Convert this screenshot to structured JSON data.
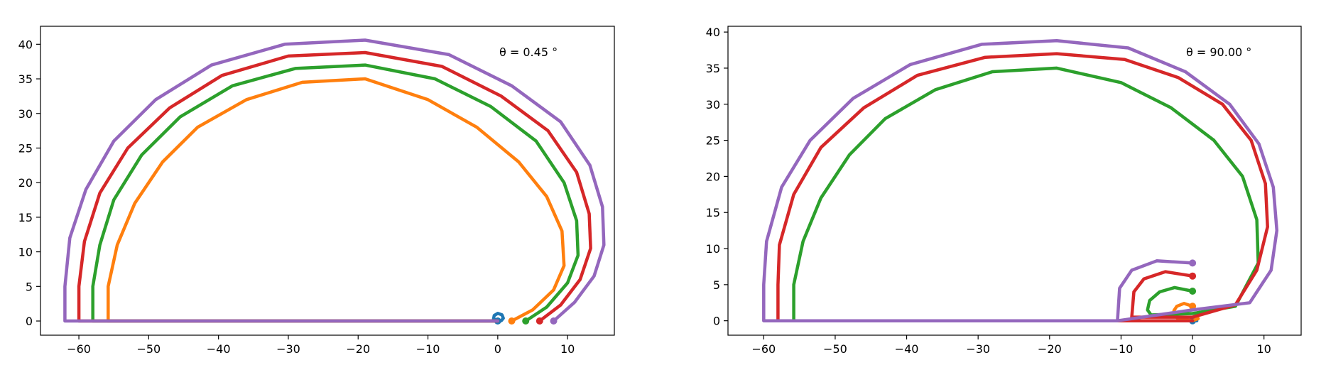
{
  "colors": {
    "blue": "#1f77b4",
    "orange": "#ff7f0e",
    "green": "#2ca02c",
    "red": "#d62728",
    "purple": "#9467bd",
    "axes": "#000000",
    "background": "#ffffff"
  },
  "chart_data": [
    {
      "type": "line",
      "title": "",
      "xlabel": "",
      "ylabel": "",
      "annotation": "θ = 0.45 °",
      "xlim": [
        -65.5,
        16.7
      ],
      "ylim": [
        -2.05,
        42.6
      ],
      "xticks": [
        -60,
        -50,
        -40,
        -30,
        -20,
        -10,
        0,
        10
      ],
      "yticks": [
        0,
        5,
        10,
        15,
        20,
        25,
        30,
        35,
        40
      ],
      "xtick_labels": [
        "−60",
        "−50",
        "−40",
        "−30",
        "−20",
        "−10",
        "0",
        "10"
      ],
      "ytick_labels": [
        "0",
        "5",
        "10",
        "15",
        "20",
        "25",
        "30",
        "35",
        "40"
      ],
      "grid": false,
      "series": [
        {
          "color": "#1f77b4",
          "x": [
            0,
            -0.6,
            -0.5,
            0,
            0.6,
            0.8,
            0.5,
            0
          ],
          "y": [
            0,
            0.3,
            0.8,
            1.1,
            0.9,
            0.4,
            0.05,
            0
          ],
          "end": [
            0,
            0
          ]
        },
        {
          "color": "#ff7f0e",
          "x": [
            2,
            5,
            8,
            9.5,
            9.2,
            7,
            3,
            -3,
            -10,
            -19,
            -28,
            -36,
            -43,
            -48,
            -52,
            -54.5,
            -55.8,
            -55.8,
            0
          ],
          "y": [
            0,
            1.6,
            4.5,
            8,
            13,
            18,
            23,
            28,
            32,
            35,
            34.5,
            32,
            28,
            23,
            17,
            11,
            5,
            0,
            0
          ],
          "end": [
            2,
            0
          ]
        },
        {
          "color": "#2ca02c",
          "x": [
            4,
            7,
            10,
            11.5,
            11.3,
            9.5,
            5.5,
            -1,
            -9,
            -19,
            -29,
            -38,
            -45.5,
            -51,
            -55,
            -57,
            -58,
            -58,
            0
          ],
          "y": [
            0,
            2,
            5.5,
            9.5,
            14.5,
            20,
            26,
            31,
            35,
            37,
            36.5,
            34,
            29.5,
            24,
            17.5,
            11,
            5,
            0,
            0
          ],
          "end": [
            4,
            0
          ]
        },
        {
          "color": "#d62728",
          "x": [
            6,
            9,
            11.8,
            13.3,
            13.1,
            11.3,
            7.2,
            0.5,
            -8,
            -19,
            -30,
            -39.5,
            -47,
            -53,
            -57,
            -59.2,
            -60,
            -60,
            0
          ],
          "y": [
            0,
            2.3,
            6,
            10.5,
            15.5,
            21.5,
            27.5,
            32.5,
            36.8,
            38.8,
            38.3,
            35.5,
            30.8,
            25,
            18.5,
            11.5,
            5,
            0,
            0
          ],
          "end": [
            6,
            0
          ]
        },
        {
          "color": "#9467bd",
          "x": [
            8,
            11,
            13.8,
            15.2,
            15,
            13.2,
            9,
            2,
            -7,
            -19,
            -30.5,
            -41,
            -49,
            -55,
            -59,
            -61.3,
            -62,
            -62,
            0
          ],
          "y": [
            0,
            2.7,
            6.5,
            11,
            16.5,
            22.5,
            28.8,
            34,
            38.5,
            40.6,
            40,
            37,
            32,
            26,
            19,
            12,
            5,
            0,
            0
          ],
          "end": [
            8,
            0
          ]
        }
      ]
    },
    {
      "type": "line",
      "title": "",
      "xlabel": "",
      "ylabel": "",
      "annotation": "θ = 90.00 °",
      "xlim": [
        -65,
        15.2
      ],
      "ylim": [
        -2,
        40.8
      ],
      "xticks": [
        -60,
        -50,
        -40,
        -30,
        -20,
        -10,
        0,
        10
      ],
      "yticks": [
        0,
        5,
        10,
        15,
        20,
        25,
        30,
        35,
        40
      ],
      "xtick_labels": [
        "−60",
        "−50",
        "−40",
        "−30",
        "−20",
        "−10",
        "0",
        "10"
      ],
      "ytick_labels": [
        "0",
        "5",
        "10",
        "15",
        "20",
        "25",
        "30",
        "35",
        "40"
      ],
      "grid": false,
      "series": [
        {
          "color": "#1f77b4",
          "x": [
            0,
            0.6
          ],
          "y": [
            0,
            0
          ],
          "end": [
            0,
            0
          ]
        },
        {
          "color": "#ff7f0e",
          "x": [
            0,
            -1.2,
            -2.2,
            -2.6,
            -2.5,
            -2,
            0,
            0.8,
            0
          ],
          "y": [
            2,
            2.4,
            2,
            1.4,
            0.7,
            0.3,
            0,
            0.3,
            0
          ],
          "end": [
            0,
            2
          ]
        },
        {
          "color": "#2ca02c",
          "x": [
            0,
            -2.5,
            -4.6,
            -6,
            -6.3,
            -5.8,
            0,
            6,
            9.2,
            9,
            7,
            3,
            -3,
            -10,
            -19,
            -28,
            -36,
            -43,
            -48,
            -52,
            -54.5,
            -55.8,
            -55.8,
            -10,
            0
          ],
          "y": [
            4.1,
            4.6,
            4,
            2.8,
            1.5,
            0.8,
            1,
            2,
            8,
            14,
            20,
            25,
            29.5,
            33,
            35,
            34.5,
            32,
            28,
            23,
            17,
            11,
            5,
            0,
            0,
            0
          ],
          "end": [
            0,
            4.1
          ]
        },
        {
          "color": "#d62728",
          "x": [
            0,
            -3.8,
            -6.8,
            -8.2,
            -8.5,
            0,
            6,
            9,
            10.5,
            10.2,
            8.2,
            4.2,
            -2,
            -9.5,
            -19,
            -29,
            -38.5,
            -46,
            -52,
            -55.8,
            -57.8,
            -58,
            -58,
            0
          ],
          "y": [
            6.2,
            6.8,
            5.8,
            4,
            0.5,
            0.5,
            2.2,
            7,
            13,
            19,
            25,
            30,
            33.7,
            36.2,
            37,
            36.5,
            34,
            29.5,
            24,
            17.5,
            10.5,
            5,
            0,
            0
          ],
          "end": [
            0,
            6.2
          ]
        },
        {
          "color": "#9467bd",
          "x": [
            0,
            -5,
            -8.5,
            -10.2,
            -10.5,
            0,
            8,
            11,
            11.8,
            11.3,
            9.3,
            5.2,
            -1,
            -9,
            -19,
            -29.5,
            -39.5,
            -47.5,
            -53.5,
            -57.5,
            -59.6,
            -60,
            -60,
            -10.5
          ],
          "y": [
            8,
            8.3,
            7,
            4.5,
            0,
            1.5,
            2.5,
            7,
            12.5,
            18.5,
            24.5,
            30,
            34.5,
            37.8,
            38.8,
            38.3,
            35.5,
            30.8,
            25,
            18.5,
            11,
            5,
            0,
            0
          ],
          "end": [
            0,
            8
          ]
        }
      ]
    }
  ]
}
